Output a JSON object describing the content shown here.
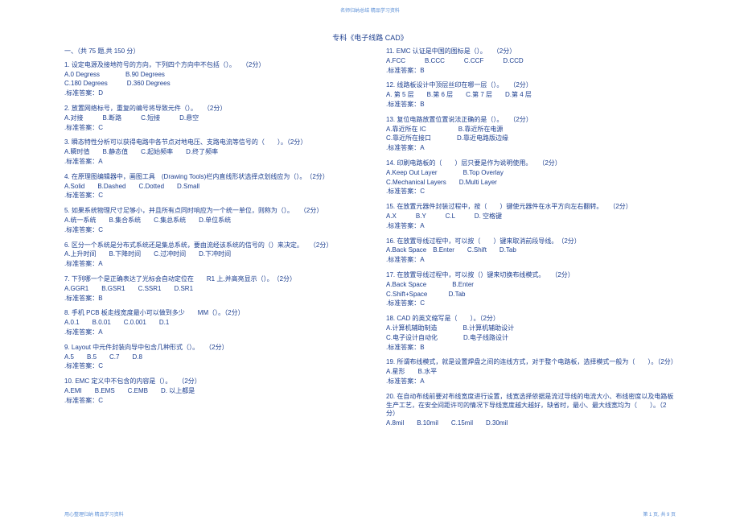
{
  "header": "名师归纳总结   精品学习资料",
  "title": "专科《电子线路   CAD》",
  "section_header": "一、（共 75 题,共 150 分）",
  "footer_left": "用心整理归纳   精品学习资料",
  "footer_right": "第 1 页, 共 9 页",
  "left_questions": [
    {
      "q": "1. 设定电源及接地符号的方向，下列四个方向中不包括（）。　　（2分）",
      "opts": [
        "A.0 Degress　　　　B.90 Degrees",
        "C.180 Degrees　　　D.360 Degrees"
      ],
      "ans": ".标准答案：D"
    },
    {
      "q": "2. 放置网络标号，重复的编号将导致元件（）。　　（2分）",
      "opts": [
        "A.对接　　　B.断路　　　C.短接　　　D.悬空"
      ],
      "ans": ".标准答案：C"
    },
    {
      "q": "3. 瞬态特性分析可以获得电路中各节点对地电压、支路电流等信号的（　　）。（2分）",
      "opts": [
        "A.瞬时值　　B.静态值　　C.起始频率　　D.终了频率"
      ],
      "ans": ".标准答案：A"
    },
    {
      "q": "4. 在原理图编辑器中，画图工具　(Drawing Tools)栏内直线形状选择点划线应为（）。　（2分）",
      "opts": [
        "A.Solid　　B.Dashed　　C.Dotted　　D.Small"
      ],
      "ans": ".标准答案：C"
    },
    {
      "q": "5. 如果系统物理尺寸足够小，并且所有点同时响应为一个统一单位，则称为（）。　　（2分）",
      "opts": [
        "A.统一系统　　B.集合系统　　C.集总系统　　D.单位系统"
      ],
      "ans": ".标准答案：C"
    },
    {
      "q": "6. 区分一个系统是分布式系统还是集总系统，要由流经该系统的信号的（）来决定。　　（2分）",
      "opts": [
        "A.上升时间　　B.下降时间　　C.过冲时间　　D.下冲时间"
      ],
      "ans": ".标准答案：A"
    },
    {
      "q": "7. 下列哪一个是正确表达了光标会自动定位在　　R1 上,并高亮显示（）。　（2分）",
      "opts": [
        "A.GGR1　　B.GSR1　　C.SSR1　　D.SR1"
      ],
      "ans": ".标准答案：B"
    },
    {
      "q": "8. 手机 PCB 板走线宽度最小可以做到多少　　MM（）。（2分）",
      "opts": [
        "A.0.1　　B.0.01　　C.0.001　　D.1"
      ],
      "ans": ".标准答案：A"
    },
    {
      "q": "9. Layout 中元件封装向导中包含几种形式（）。　　（2分）",
      "opts": [
        "A.5　　B.5　　C.7　　D.8"
      ],
      "ans": ".标准答案：C"
    },
    {
      "q": "10. EMC 定义中不包含的内容是（）。　　（2分）",
      "opts": [
        "A.EMI　　B.EMS　　C.EMB　　D. 以上都是"
      ],
      "ans": ".标准答案：C"
    }
  ],
  "right_questions": [
    {
      "q": "11. EMC 认证是中国的图标是（）。　　（2分）",
      "opts": [
        "A.FCC　　　B.CCC　　　C.CCF　　　D.CCD"
      ],
      "ans": ".标准答案：B"
    },
    {
      "q": "12. 线路板设计中顶层丝印在哪一层（）。　　（2分）",
      "opts": [
        "A. 第 5 层　　B.第 6 层　　C.第 7 层　　D.第 4 层"
      ],
      "ans": ".标准答案：B"
    },
    {
      "q": "13. 复位电路放置位置说法正确的是（）。　　（2分）",
      "opts": [
        "A.靠近所在 IC　　　　　B.靠近所在电源",
        "C.靠近所在接口　　　　D.靠近电路版边缘"
      ],
      "ans": ".标准答案：A"
    },
    {
      "q": "14. 印刷电路板的（　　）层只要是作为说明使用。　　（2分）",
      "opts": [
        "A.Keep Out Layer　　　　B.Top Overlay",
        "C.Mechanical Layers　　D.Multi Layer"
      ],
      "ans": ".标准答案：C"
    },
    {
      "q": "15. 在放置元器件封装过程中，按（　　）键使元器件在水平方向左右翻转。　　（2分）",
      "opts": [
        "A.X　　　B.Y　　　C.L　　　D. 空格键"
      ],
      "ans": ".标准答案：A"
    },
    {
      "q": "16. 在放置导线过程中，可以按（　　）键来取消前段导线。　（2分）",
      "opts": [
        "A.Back Space　B.Enter　　C.Shift　　D.Tab"
      ],
      "ans": ".标准答案：A"
    },
    {
      "q": "17. 在放置导线过程中，可以按（）键来切换布线模式。　　（2分）",
      "opts": [
        "A.Back Space　　　　B.Enter",
        "C.Shift+Space　　　 D.Tab"
      ],
      "ans": ".标准答案：C"
    },
    {
      "q": "18. CAD 的英文缩写是（　　）。（2分）",
      "opts": [
        "A.计算机辅助制造　　　　B.计算机辅助设计",
        "C.电子设计自动化　　　　D.电子线路设计"
      ],
      "ans": ".标准答案：B"
    },
    {
      "q": "19. 所谓布线模式，就是设置焊盘之间的连线方式，对于整个电路板，选择模式一般为（　　）。（2分）",
      "opts": [
        "A.星形　　B.水平"
      ],
      "ans": ".标准答案：A"
    },
    {
      "q": "20. 在自动布线前要对布线宽度进行设置，线宽选择依据是流过导线的电流大小、布线密度以及电路板生产工艺，在安全间距许可的情况下导线宽度越大越好，缺省时，最小、最大线宽均为（　　）。（2分）",
      "opts": [
        "A.8mil　　B.10mil　　C.15mil　　D.30mil"
      ],
      "ans": ""
    }
  ]
}
